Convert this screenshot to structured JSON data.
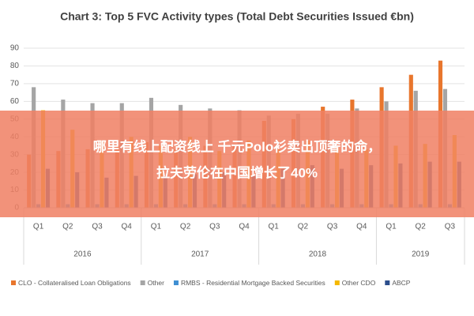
{
  "chart_data": {
    "type": "bar",
    "title": "Chart 3: Top 5 FVC Activity types (Total Debt Securities Issued €bn)",
    "year_groups": [
      {
        "label": "2016",
        "categories": [
          "Q1",
          "Q2",
          "Q3",
          "Q4"
        ]
      },
      {
        "label": "2017",
        "categories": [
          "Q1",
          "Q2",
          "Q3",
          "Q4"
        ]
      },
      {
        "label": "2018",
        "categories": [
          "Q1",
          "Q2",
          "Q3",
          "Q4"
        ]
      },
      {
        "label": "2019",
        "categories": [
          "Q1",
          "Q2",
          "Q3"
        ]
      }
    ],
    "series": [
      {
        "name": "CLO - Collateralised Loan Obligations",
        "color": "#e8762d",
        "values": [
          30,
          32,
          33,
          35,
          37,
          33,
          35,
          36,
          49,
          50,
          57,
          61,
          68,
          75,
          83
        ]
      },
      {
        "name": "Other",
        "color": "#a5a5a5",
        "values": [
          68,
          61,
          59,
          59,
          62,
          58,
          56,
          55,
          52,
          53,
          53,
          56,
          60,
          66,
          67
        ]
      },
      {
        "name": "RMBS - Residential Mortgage Backed Securities",
        "color": "#3f8fd2",
        "values": [
          2,
          2,
          2,
          2,
          2,
          2,
          2,
          2,
          2,
          2,
          2,
          2,
          2,
          2,
          2
        ]
      },
      {
        "name": "Other CDO",
        "color": "#f5b800",
        "values": [
          55,
          44,
          38,
          40,
          35,
          40,
          32,
          38,
          33,
          38,
          34,
          33,
          35,
          36,
          41
        ]
      },
      {
        "name": "ABCP",
        "color": "#2c4e8c",
        "values": [
          22,
          20,
          17,
          18,
          18,
          19,
          20,
          18,
          22,
          24,
          22,
          24,
          25,
          26,
          26
        ]
      }
    ],
    "ylim": [
      0,
      90
    ],
    "yticks": [
      0,
      10,
      20,
      30,
      40,
      50,
      60,
      70,
      80,
      90
    ],
    "grid": true
  },
  "overlay": {
    "lines": [
      "哪里有线上配资线上 千元Polo衫卖出顶奢的命，",
      "拉夫劳伦在中国增长了40%"
    ]
  }
}
